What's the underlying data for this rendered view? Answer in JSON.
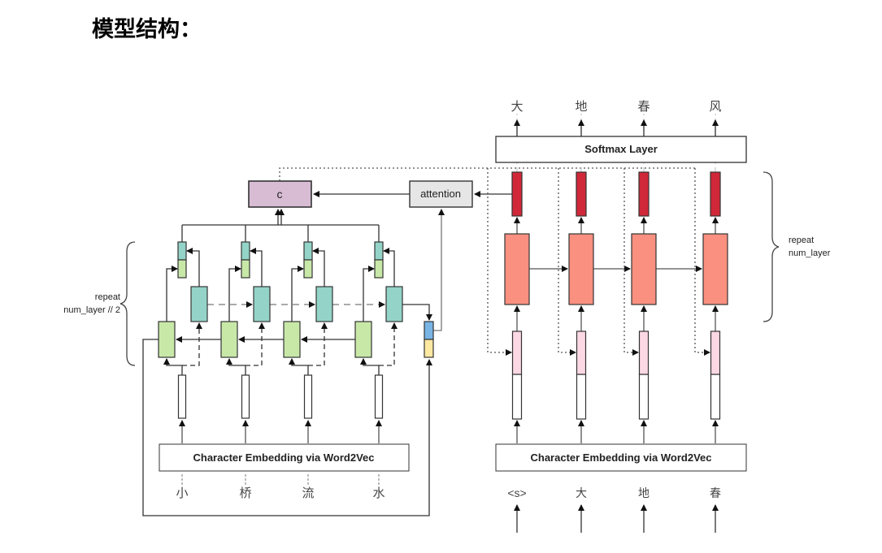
{
  "title": "模型结构：",
  "encoder": {
    "inputs": [
      "小",
      "桥",
      "流",
      "水"
    ],
    "embedding_label": "Character Embedding via Word2Vec",
    "repeat_label": [
      "repeat",
      "num_layer // 2"
    ],
    "context_label": "c",
    "attention_label": "attention"
  },
  "decoder": {
    "inputs": [
      "<s>",
      "大",
      "地",
      "春"
    ],
    "outputs": [
      "大",
      "地",
      "春",
      "风"
    ],
    "embedding_label": "Character Embedding via Word2Vec",
    "softmax_label": "Softmax Layer",
    "repeat_label": [
      "repeat",
      "num_layer"
    ]
  },
  "colors": {
    "context": "#d8bcd4",
    "attention": "#e6e6e6",
    "forward_cell": "#c8e8a8",
    "backward_cell": "#94d4c8",
    "decoder_cell": "#f99080",
    "decoder_output": "#d02838",
    "decoder_input": "#fcd8e4",
    "state_top": "#78b4e4",
    "state_bottom": "#fce8a0"
  }
}
